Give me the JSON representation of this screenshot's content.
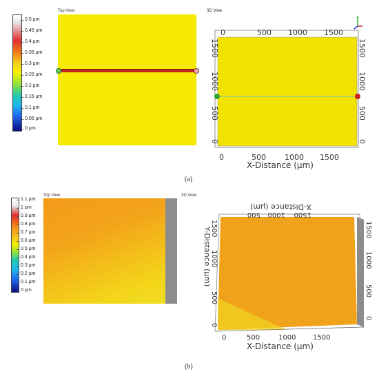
{
  "panel_a": {
    "label": "(a)",
    "scale_ticks": [
      "0.5 µm",
      "0.45 µm",
      "0.4 µm",
      "0.35 µm",
      "0.3 µm",
      "0.25 µm",
      "0.2 µm",
      "0.15 µm",
      "0.1 µm",
      "0.05 µm",
      "0 µm"
    ],
    "top_view_title": "Top View",
    "view3d_title": "3D View",
    "x_top_ticks": [
      "0",
      "500",
      "1000",
      "1500"
    ],
    "x_bottom_ticks": [
      "0",
      "500",
      "1000",
      "1500"
    ],
    "y_left_ticks": [
      "1500",
      "1000",
      "500",
      "0"
    ],
    "y_right_ticks": [
      "1500",
      "1000",
      "500",
      "0"
    ],
    "x_axis_label": "X-Distance (µm)"
  },
  "panel_b": {
    "label": "(b)",
    "scale_ticks": [
      "1.1 µm",
      "1 µm",
      "0.9 µm",
      "0.8 µm",
      "0.7 µm",
      "0.6 µm",
      "0.5 µm",
      "0.4 µm",
      "0.3 µm",
      "0.2 µm",
      "0.1 µm",
      "0 µm"
    ],
    "top_view_title": "Top View",
    "view3d_title": "3D View",
    "x_top_ticks": [
      "1500",
      "1000",
      "500"
    ],
    "x_top_label": "X-Distance (µm)",
    "x_bottom_ticks": [
      "0",
      "500",
      "1000",
      "1500"
    ],
    "x_axis_label": "X-Distance (µm)",
    "y_left_ticks": [
      "1500",
      "1000",
      "500",
      "0"
    ],
    "y_left_label": "Y-Distance (µm)",
    "y_right_ticks": [
      "1500",
      "1000",
      "500",
      "0"
    ]
  },
  "colors": {
    "surface_a": "#f5ea00",
    "line_red": "#c0271f",
    "surface_b_orange": "#f3a21a",
    "surface_b_yellow": "#f3d21a",
    "gray_edge": "#8c8c8c"
  }
}
